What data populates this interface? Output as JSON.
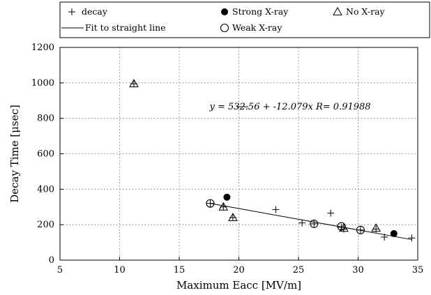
{
  "chart_data": {
    "type": "scatter",
    "xlabel": "Maximum Eacc [MV/m]",
    "ylabel": "Decay Time [μsec]",
    "xlim": [
      5,
      35
    ],
    "ylim": [
      0,
      1200
    ],
    "x_ticks": [
      5,
      10,
      15,
      20,
      25,
      30,
      35
    ],
    "y_ticks": [
      0,
      200,
      400,
      600,
      800,
      1000,
      1200
    ],
    "grid": "dotted",
    "legend_placement": "top",
    "legend": [
      {
        "key": "decay",
        "label": "decay",
        "marker": "plus"
      },
      {
        "key": "fit",
        "label": "Fit to straight line",
        "marker": "line"
      },
      {
        "key": "strong",
        "label": "Strong X-ray",
        "marker": "filled-circle"
      },
      {
        "key": "weak",
        "label": "Weak X-ray",
        "marker": "open-circle"
      },
      {
        "key": "none",
        "label": "No X-ray",
        "marker": "open-triangle"
      }
    ],
    "series": [
      {
        "key": "decay",
        "marker": "plus",
        "points": [
          [
            11.2,
            995
          ],
          [
            17.6,
            320
          ],
          [
            18.7,
            300
          ],
          [
            19.5,
            240
          ],
          [
            23.1,
            285
          ],
          [
            25.3,
            210
          ],
          [
            26.3,
            205
          ],
          [
            27.7,
            265
          ],
          [
            28.6,
            185
          ],
          [
            28.8,
            175
          ],
          [
            30.2,
            170
          ],
          [
            31.5,
            175
          ],
          [
            32.2,
            130
          ],
          [
            34.5,
            125
          ]
        ]
      },
      {
        "key": "strong",
        "marker": "filled-circle",
        "points": [
          [
            19.0,
            355
          ],
          [
            33.0,
            150
          ]
        ]
      },
      {
        "key": "weak",
        "marker": "open-circle",
        "points": [
          [
            17.6,
            320
          ],
          [
            26.3,
            205
          ],
          [
            28.6,
            190
          ],
          [
            30.2,
            170
          ]
        ]
      },
      {
        "key": "none",
        "marker": "open-triangle",
        "points": [
          [
            11.2,
            995
          ],
          [
            18.7,
            300
          ],
          [
            19.5,
            240
          ],
          [
            28.8,
            180
          ],
          [
            31.5,
            180
          ]
        ]
      }
    ],
    "fit": {
      "intercept": 532.56,
      "slope": -12.079,
      "x_range": [
        17.6,
        34.5
      ]
    },
    "annotation": "y = 532.56 + -12.079x R= 0.91988"
  }
}
